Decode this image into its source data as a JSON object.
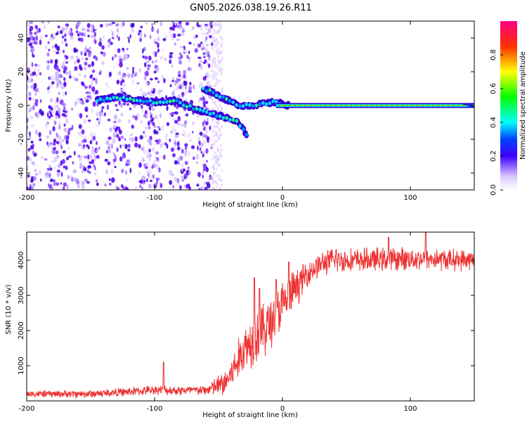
{
  "title": "GN05.2026.038.19.26.R11",
  "chart_data": [
    {
      "type": "heatmap",
      "name": "spectrogram",
      "xlabel": "Height of straight line (km)",
      "ylabel": "Frequency (Hz)",
      "xlim": [
        -200,
        150
      ],
      "ylim": [
        -50,
        50
      ],
      "xticks": [
        -200,
        -100,
        0,
        100
      ],
      "yticks": [
        -40,
        -20,
        0,
        20,
        40
      ],
      "colorbar": {
        "label": "Normalized spectral amplitude",
        "range": [
          0,
          1
        ],
        "ticks": [
          0.0,
          0.2,
          0.4,
          0.6,
          0.8
        ],
        "tick_labels": [
          "0.0",
          "0.2",
          "0.4",
          "0.6",
          "0.8"
        ]
      },
      "features": {
        "scatter_region_km": [
          -200,
          -55
        ],
        "main_trace": [
          [
            -145,
            3
          ],
          [
            -130,
            5
          ],
          [
            -115,
            3
          ],
          [
            -100,
            2
          ],
          [
            -85,
            3
          ],
          [
            -75,
            0
          ],
          [
            -65,
            -3
          ],
          [
            -55,
            -5
          ],
          [
            -45,
            -7
          ],
          [
            -35,
            -10
          ],
          [
            -28,
            -17
          ]
        ],
        "upper_branch": [
          [
            -62,
            10
          ],
          [
            -55,
            8
          ],
          [
            -48,
            5
          ],
          [
            -40,
            2
          ],
          [
            -33,
            0
          ],
          [
            -25,
            0
          ],
          [
            -15,
            1
          ],
          [
            -5,
            2
          ],
          [
            5,
            0
          ]
        ],
        "carrier": [
          [
            -5,
            0
          ],
          [
            150,
            0
          ]
        ],
        "carrier_flare_at_end": [
          [
            140,
            2
          ],
          [
            150,
            3
          ]
        ]
      }
    },
    {
      "type": "line",
      "name": "snr",
      "xlabel": "Height of straight line (km)",
      "ylabel": "SNR (10 * v/v)",
      "xlim": [
        -200,
        150
      ],
      "ylim": [
        0,
        4800
      ],
      "xticks": [
        -200,
        -100,
        0,
        100
      ],
      "yticks": [
        1000,
        2000,
        3000,
        4000
      ],
      "color": "#ee3333",
      "series_profile": [
        [
          -200,
          200
        ],
        [
          -150,
          200
        ],
        [
          -110,
          280
        ],
        [
          -100,
          320
        ],
        [
          -90,
          300
        ],
        [
          -60,
          300
        ],
        [
          -45,
          500
        ],
        [
          -38,
          900
        ],
        [
          -30,
          1500
        ],
        [
          -22,
          1800
        ],
        [
          -15,
          2000
        ],
        [
          -8,
          2300
        ],
        [
          0,
          2700
        ],
        [
          10,
          3200
        ],
        [
          20,
          3650
        ],
        [
          30,
          3900
        ],
        [
          40,
          4000
        ],
        [
          60,
          4000
        ],
        [
          100,
          4050
        ],
        [
          150,
          4000
        ]
      ],
      "noise_amplitude": [
        [
          -200,
          80
        ],
        [
          -60,
          120
        ],
        [
          -40,
          400
        ],
        [
          -20,
          700
        ],
        [
          0,
          600
        ],
        [
          20,
          300
        ],
        [
          150,
          250
        ]
      ],
      "spikes": [
        [
          -93,
          1100
        ],
        [
          -22,
          3500
        ],
        [
          -18,
          3200
        ],
        [
          -5,
          3450
        ],
        [
          5,
          3950
        ],
        [
          42,
          4300
        ],
        [
          83,
          4650
        ],
        [
          112,
          4800
        ]
      ]
    }
  ]
}
